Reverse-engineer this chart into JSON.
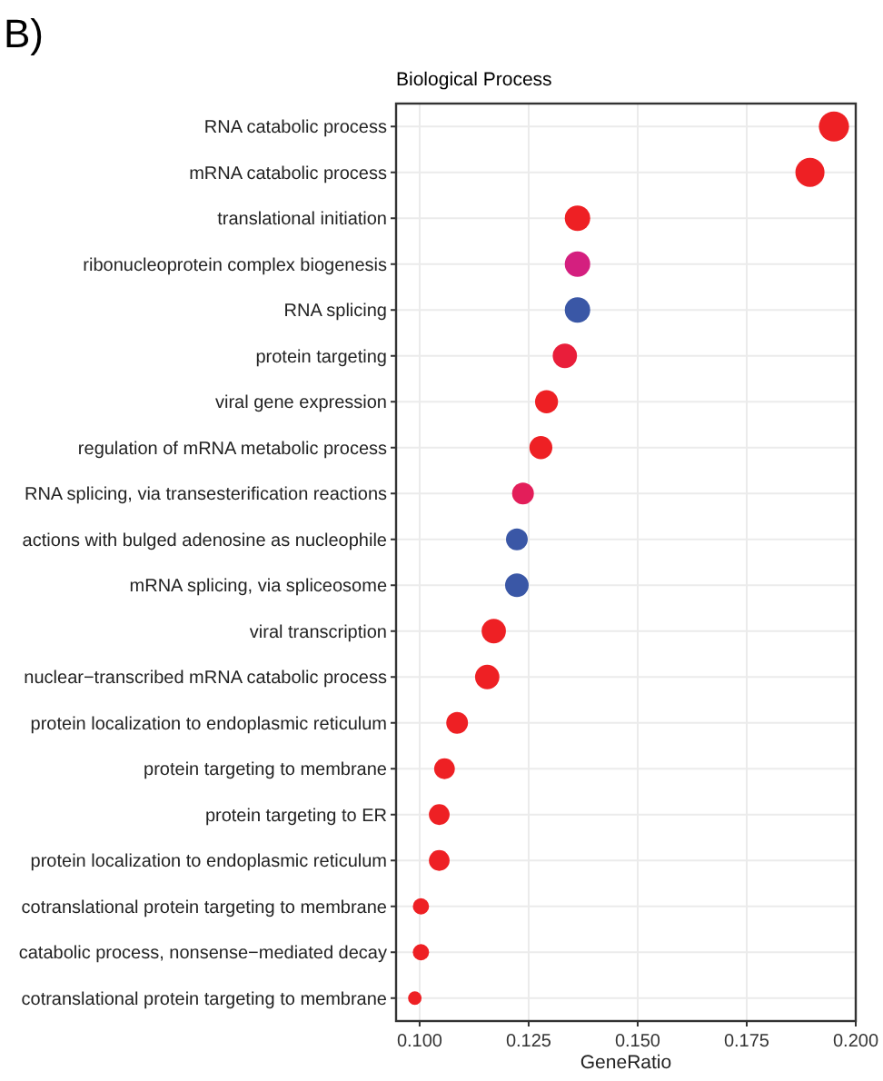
{
  "chart_data": {
    "type": "bubble",
    "orientation": "horizontal",
    "title": "Biological Process",
    "xlabel": "GeneRatio",
    "annotations": [
      "B)"
    ],
    "categories": [
      "RNA catabolic process",
      "mRNA catabolic process",
      "translational initiation",
      "ribonucleoprotein complex biogenesis",
      "RNA splicing",
      "protein targeting",
      "viral gene expression",
      "regulation of mRNA metabolic process",
      "RNA splicing, via transesterification reactions",
      "actions with bulged adenosine as nucleophile",
      "mRNA splicing, via spliceosome",
      "viral transcription",
      "nuclear−transcribed mRNA catabolic process",
      "protein localization to endoplasmic reticulum",
      "protein targeting to membrane",
      "protein targeting to ER",
      "protein localization to endoplasmic reticulum",
      "cotranslational protein targeting to membrane",
      "catabolic process, nonsense−mediated decay",
      "cotranslational protein targeting to membrane"
    ],
    "values": [
      0.195,
      0.1895,
      0.1362,
      0.1362,
      0.1362,
      0.1333,
      0.1291,
      0.1278,
      0.1237,
      0.1223,
      0.1223,
      0.117,
      0.1155,
      0.1086,
      0.1057,
      0.1045,
      0.1045,
      0.1003,
      0.1003,
      0.0989
    ],
    "sizes": [
      1,
      0.93,
      0.71,
      0.71,
      0.71,
      0.65,
      0.58,
      0.58,
      0.52,
      0.52,
      0.61,
      0.65,
      0.65,
      0.52,
      0.47,
      0.47,
      0.47,
      0.29,
      0.29,
      0.2
    ],
    "colors": [
      "#ee2024",
      "#ee2024",
      "#ee2024",
      "#d41f7f",
      "#3a57a6",
      "#e91e3a",
      "#ee2024",
      "#ee2024",
      "#e31e5a",
      "#3a57a6",
      "#3a57a6",
      "#ee2024",
      "#ee2024",
      "#ee2024",
      "#ee2024",
      "#ee2024",
      "#ee2024",
      "#ee2024",
      "#ee2024",
      "#ee2024"
    ],
    "xlim": [
      0.0946,
      0.2
    ],
    "xticks": [
      {
        "value": 0.1,
        "label": "0.100"
      },
      0.125,
      {
        "value": 0.15,
        "label": "0.150"
      },
      0.175,
      {
        "value": 0.2,
        "label": "0.200"
      }
    ],
    "grid": true
  }
}
